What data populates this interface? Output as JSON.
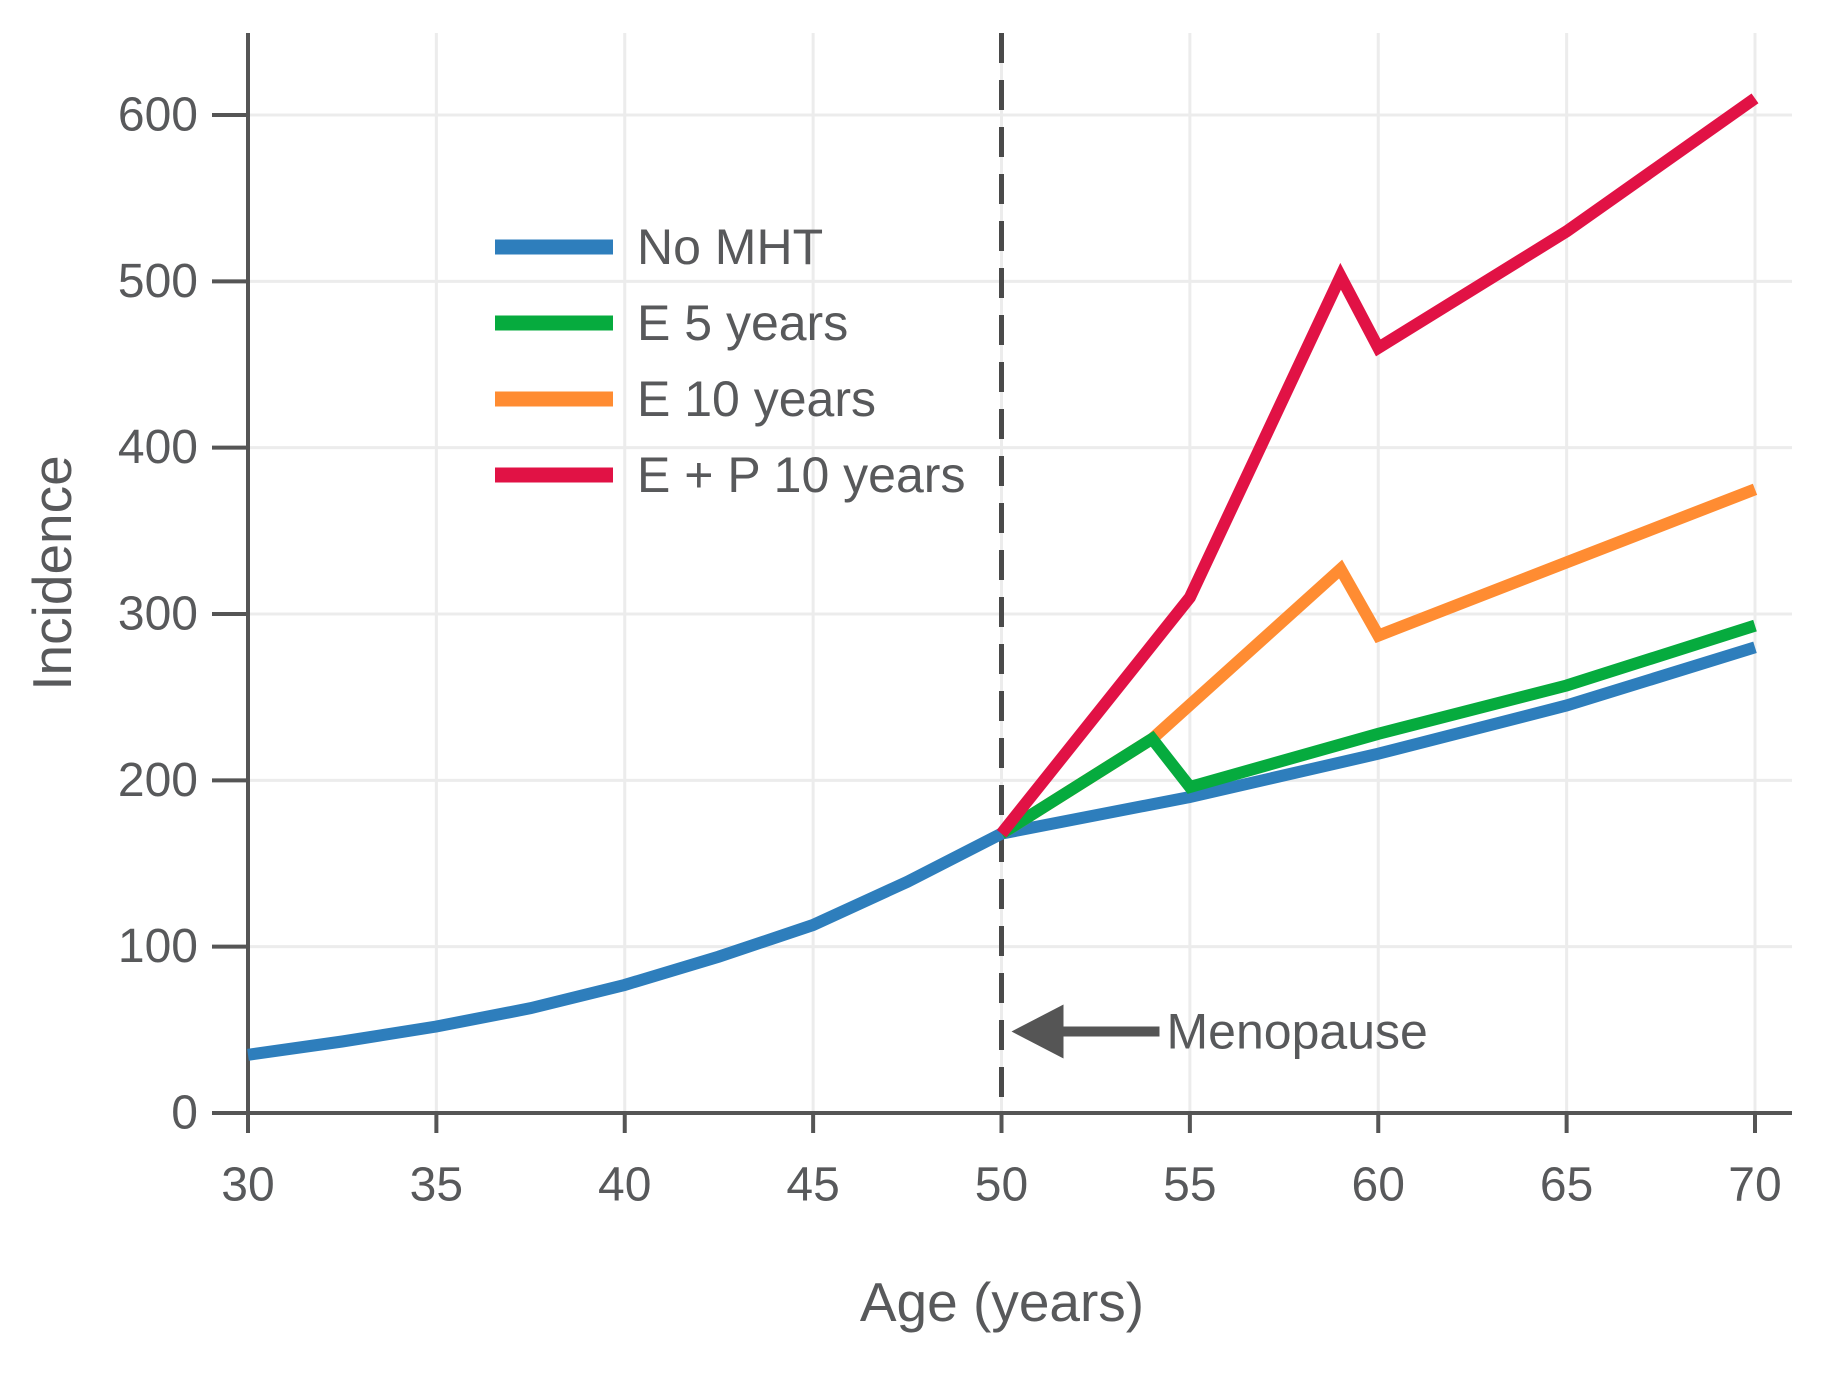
{
  "chart_data": {
    "type": "line",
    "title": "",
    "xlabel": "Age (years)",
    "ylabel": "Incidence",
    "xlim": [
      30,
      70
    ],
    "ylim": [
      0,
      650
    ],
    "x_ticks": [
      30,
      35,
      40,
      45,
      50,
      55,
      60,
      65,
      70
    ],
    "y_ticks": [
      0,
      100,
      200,
      300,
      400,
      500,
      600
    ],
    "grid": true,
    "legend_position": "upper-left",
    "colors": {
      "axis": "#555555",
      "text": "#58595b",
      "gridline": "#ececec",
      "vline": "#4a4a4a",
      "annotation": "#555555"
    },
    "vline": {
      "x": 50,
      "style": "dashed",
      "color": "#4a4a4a"
    },
    "annotation": {
      "text": "Menopause",
      "arrow": "left",
      "at_x": 50,
      "at_y": 49
    },
    "series": [
      {
        "name": "No MHT",
        "color": "#2e7ebc",
        "points": [
          [
            30,
            35
          ],
          [
            32.5,
            43
          ],
          [
            35,
            52
          ],
          [
            37.5,
            63
          ],
          [
            40,
            77
          ],
          [
            42.5,
            94
          ],
          [
            45,
            113
          ],
          [
            47.5,
            139
          ],
          [
            50,
            168
          ],
          [
            55,
            190
          ],
          [
            60,
            216
          ],
          [
            65,
            245
          ],
          [
            70,
            280
          ]
        ]
      },
      {
        "name": "E 5 years",
        "color": "#06ab3e",
        "points": [
          [
            50,
            168
          ],
          [
            54,
            225
          ],
          [
            55,
            196
          ],
          [
            60,
            228
          ],
          [
            65,
            257
          ],
          [
            70,
            293
          ]
        ]
      },
      {
        "name": "E 10 years",
        "color": "#ff8c32",
        "points": [
          [
            50,
            168
          ],
          [
            54,
            225
          ],
          [
            59,
            327
          ],
          [
            60,
            287
          ],
          [
            65,
            331
          ],
          [
            70,
            375
          ]
        ]
      },
      {
        "name": "E + P 10 years",
        "color": "#e11245",
        "points": [
          [
            50,
            168
          ],
          [
            55,
            310
          ],
          [
            59,
            503
          ],
          [
            60,
            460
          ],
          [
            65,
            530
          ],
          [
            70,
            610
          ]
        ]
      }
    ]
  }
}
